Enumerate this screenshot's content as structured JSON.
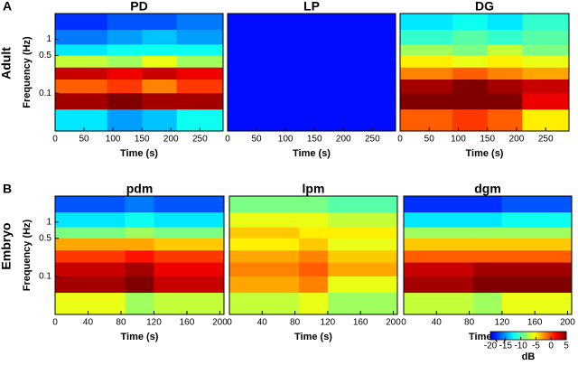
{
  "chart_data": [
    {
      "type": "heatmap",
      "panel_label": "A",
      "row_label": "Adult",
      "title": "PD",
      "xlabel": "Time (s)",
      "ylabel": "Frequency (Hz)",
      "xlim": [
        0,
        290
      ],
      "xticks": [
        0,
        50,
        100,
        150,
        200,
        250
      ],
      "ylim": [
        0.02,
        3
      ],
      "ylog": true,
      "yticks": [
        0.1,
        0.5,
        1
      ],
      "x_edges": [
        0,
        90,
        150,
        210,
        290
      ],
      "y_edges": [
        3,
        1.5,
        0.8,
        0.5,
        0.3,
        0.18,
        0.1,
        0.05,
        0.02
      ],
      "z": [
        [
          -18,
          -17,
          -17,
          -16
        ],
        [
          -16,
          -15,
          -14,
          -15
        ],
        [
          -13,
          -12,
          -12,
          -12
        ],
        [
          -7,
          -8,
          -6,
          -8
        ],
        [
          3,
          2,
          3,
          2
        ],
        [
          -1,
          0,
          -2,
          0
        ],
        [
          4,
          5,
          4,
          4
        ],
        [
          -13,
          -15,
          -14,
          -12
        ]
      ]
    },
    {
      "type": "heatmap",
      "title": "LP",
      "xlabel": "Time (s)",
      "xlim": [
        0,
        290
      ],
      "xticks": [
        0,
        50,
        100,
        150,
        200,
        250
      ],
      "ylim": [
        0.02,
        3
      ],
      "ylog": true,
      "x_edges": [
        0,
        90,
        150,
        210,
        290
      ],
      "y_edges": [
        3,
        1.5,
        0.8,
        0.5,
        0.3,
        0.18,
        0.1,
        0.05,
        0.02
      ],
      "z": [
        [
          -19,
          -19,
          -19,
          -19
        ],
        [
          -19,
          -19,
          -19,
          -19
        ],
        [
          -19,
          -19,
          -19,
          -19
        ],
        [
          -19,
          -19,
          -19,
          -19
        ],
        [
          -19,
          -19,
          -19,
          -19
        ],
        [
          -19,
          -19,
          -19,
          -19
        ],
        [
          -19,
          -19,
          -19,
          -19
        ],
        [
          -19,
          -19,
          -19,
          -19
        ]
      ]
    },
    {
      "type": "heatmap",
      "title": "DG",
      "xlabel": "Time (s)",
      "xlim": [
        0,
        290
      ],
      "xticks": [
        0,
        50,
        100,
        150,
        200,
        250
      ],
      "ylim": [
        0.02,
        3
      ],
      "ylog": true,
      "x_edges": [
        0,
        90,
        150,
        210,
        290
      ],
      "y_edges": [
        3,
        1.5,
        0.8,
        0.5,
        0.3,
        0.18,
        0.1,
        0.05,
        0.02
      ],
      "z": [
        [
          -13,
          -12,
          -13,
          -11
        ],
        [
          -11,
          -10,
          -11,
          -10
        ],
        [
          -8,
          -9,
          -7,
          -9
        ],
        [
          -5,
          -6,
          -5,
          -6
        ],
        [
          -2,
          -1,
          -2,
          -3
        ],
        [
          4,
          5,
          4,
          3
        ],
        [
          5,
          5,
          5,
          2
        ],
        [
          -1,
          0,
          -1,
          -5
        ]
      ]
    },
    {
      "type": "heatmap",
      "panel_label": "B",
      "row_label": "Embryo",
      "title": "pdm",
      "xlabel": "Time (s)",
      "ylabel": "Frequency (Hz)",
      "xlim": [
        0,
        205
      ],
      "xticks": [
        0,
        40,
        80,
        120,
        160,
        200
      ],
      "ylim": [
        0.02,
        3
      ],
      "ylog": true,
      "yticks": [
        0.1,
        0.5,
        1
      ],
      "x_edges": [
        0,
        85,
        120,
        205
      ],
      "y_edges": [
        3,
        1.5,
        0.8,
        0.5,
        0.3,
        0.18,
        0.1,
        0.05,
        0.02
      ],
      "z": [
        [
          -17,
          -16,
          -17
        ],
        [
          -13,
          -12,
          -13
        ],
        [
          -9,
          -8,
          -9
        ],
        [
          -3,
          -3,
          -4
        ],
        [
          0,
          1,
          0
        ],
        [
          3,
          4,
          2
        ],
        [
          4,
          5,
          3
        ],
        [
          -6,
          -8,
          -7
        ]
      ]
    },
    {
      "type": "heatmap",
      "title": "lpm",
      "xlabel": "Time (s)",
      "xlim": [
        0,
        205
      ],
      "xticks": [
        0,
        40,
        80,
        120,
        160,
        200
      ],
      "ylim": [
        0.02,
        3
      ],
      "ylog": true,
      "x_edges": [
        0,
        85,
        120,
        205
      ],
      "y_edges": [
        3,
        1.5,
        0.8,
        0.5,
        0.3,
        0.18,
        0.1,
        0.05,
        0.02
      ],
      "z": [
        [
          -9,
          -9,
          -10
        ],
        [
          -6,
          -6,
          -7
        ],
        [
          -4,
          -5,
          -5
        ],
        [
          -5,
          -4,
          -6
        ],
        [
          -3,
          -2,
          -4
        ],
        [
          -2,
          -1,
          -3
        ],
        [
          -3,
          -2,
          -6
        ],
        [
          -7,
          -6,
          -8
        ]
      ]
    },
    {
      "type": "heatmap",
      "title": "dgm",
      "xlabel": "Time (s)",
      "xlim": [
        0,
        205
      ],
      "xticks": [
        0,
        40,
        80,
        120,
        160,
        200
      ],
      "ylim": [
        0.02,
        3
      ],
      "ylog": true,
      "x_edges": [
        0,
        85,
        120,
        205
      ],
      "y_edges": [
        3,
        1.5,
        0.8,
        0.5,
        0.3,
        0.18,
        0.1,
        0.05,
        0.02
      ],
      "z": [
        [
          -18,
          -18,
          -17
        ],
        [
          -13,
          -13,
          -12
        ],
        [
          -8,
          -8,
          -8
        ],
        [
          -4,
          -4,
          -4
        ],
        [
          -1,
          -1,
          -1
        ],
        [
          3,
          4,
          4
        ],
        [
          4,
          5,
          5
        ],
        [
          -7,
          -8,
          -6
        ]
      ]
    }
  ],
  "colorbar": {
    "label": "dB",
    "zlim": [
      -20,
      5
    ],
    "ticks": [
      -20,
      -15,
      -10,
      -5,
      0,
      5
    ]
  }
}
